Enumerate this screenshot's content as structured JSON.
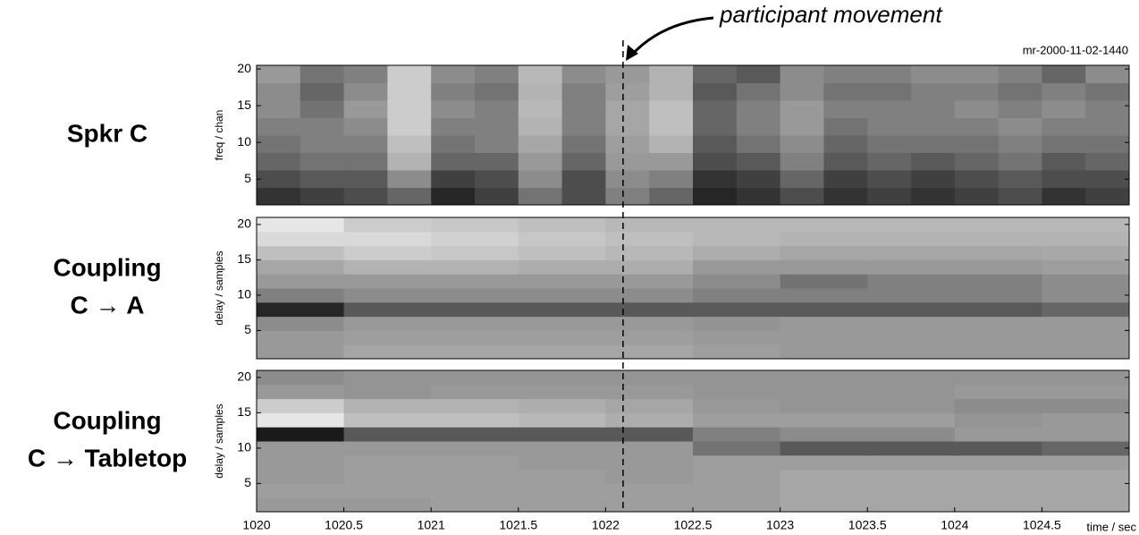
{
  "chart_data": [
    {
      "type": "heatmap",
      "title": [
        "Spkr C"
      ],
      "ylabel": "freq / chan",
      "run_id": "mr-2000-11-02-1440",
      "annotation": {
        "text": "participant movement",
        "x": 1022.1
      },
      "xlim": [
        1020,
        1025
      ],
      "ylim": [
        1.5,
        20.5
      ],
      "yticks": [
        5,
        10,
        15,
        20
      ],
      "z": [
        [
          0.2,
          0.25,
          0.3,
          0.4,
          0.15,
          0.25,
          0.45,
          0.3,
          0.5,
          0.4,
          0.15,
          0.2,
          0.3,
          0.2,
          0.25,
          0.2,
          0.25,
          0.3,
          0.2,
          0.25
        ],
        [
          0.3,
          0.35,
          0.35,
          0.55,
          0.25,
          0.3,
          0.55,
          0.3,
          0.55,
          0.5,
          0.2,
          0.25,
          0.4,
          0.25,
          0.3,
          0.25,
          0.3,
          0.35,
          0.3,
          0.3
        ],
        [
          0.4,
          0.45,
          0.45,
          0.7,
          0.4,
          0.4,
          0.6,
          0.4,
          0.6,
          0.6,
          0.3,
          0.35,
          0.5,
          0.35,
          0.4,
          0.35,
          0.4,
          0.45,
          0.35,
          0.4
        ],
        [
          0.45,
          0.5,
          0.5,
          0.75,
          0.45,
          0.5,
          0.65,
          0.45,
          0.62,
          0.7,
          0.35,
          0.45,
          0.55,
          0.4,
          0.45,
          0.45,
          0.45,
          0.5,
          0.45,
          0.45
        ],
        [
          0.5,
          0.5,
          0.55,
          0.8,
          0.5,
          0.5,
          0.7,
          0.5,
          0.65,
          0.75,
          0.4,
          0.5,
          0.6,
          0.45,
          0.5,
          0.5,
          0.5,
          0.55,
          0.5,
          0.5
        ],
        [
          0.55,
          0.45,
          0.6,
          0.8,
          0.55,
          0.5,
          0.72,
          0.5,
          0.65,
          0.75,
          0.4,
          0.5,
          0.6,
          0.5,
          0.5,
          0.5,
          0.55,
          0.5,
          0.55,
          0.5
        ],
        [
          0.55,
          0.4,
          0.55,
          0.8,
          0.5,
          0.45,
          0.7,
          0.5,
          0.62,
          0.7,
          0.35,
          0.45,
          0.55,
          0.45,
          0.45,
          0.5,
          0.5,
          0.45,
          0.5,
          0.45
        ],
        [
          0.6,
          0.45,
          0.5,
          0.8,
          0.55,
          0.5,
          0.72,
          0.55,
          0.6,
          0.7,
          0.4,
          0.35,
          0.55,
          0.5,
          0.5,
          0.55,
          0.55,
          0.5,
          0.4,
          0.55
        ]
      ]
    },
    {
      "type": "heatmap",
      "title": [
        "Coupling",
        "C → A"
      ],
      "ylabel": "delay / samples",
      "xlim": [
        1020,
        1025
      ],
      "ylim": [
        1,
        21
      ],
      "yticks": [
        5,
        10,
        15,
        20
      ],
      "z": [
        [
          0.6,
          0.65,
          0.65,
          0.65,
          0.65,
          0.62,
          0.6,
          0.6,
          0.6,
          0.6
        ],
        [
          0.6,
          0.62,
          0.62,
          0.62,
          0.62,
          0.6,
          0.6,
          0.6,
          0.6,
          0.6
        ],
        [
          0.55,
          0.6,
          0.6,
          0.6,
          0.6,
          0.58,
          0.6,
          0.6,
          0.6,
          0.6
        ],
        [
          0.15,
          0.35,
          0.35,
          0.35,
          0.35,
          0.35,
          0.35,
          0.35,
          0.35,
          0.4
        ],
        [
          0.5,
          0.55,
          0.55,
          0.55,
          0.55,
          0.5,
          0.5,
          0.5,
          0.5,
          0.55
        ],
        [
          0.6,
          0.6,
          0.6,
          0.6,
          0.6,
          0.55,
          0.45,
          0.5,
          0.5,
          0.55
        ],
        [
          0.65,
          0.7,
          0.7,
          0.68,
          0.68,
          0.6,
          0.6,
          0.6,
          0.6,
          0.62
        ],
        [
          0.75,
          0.8,
          0.78,
          0.75,
          0.72,
          0.68,
          0.65,
          0.65,
          0.65,
          0.66
        ],
        [
          0.85,
          0.85,
          0.82,
          0.78,
          0.75,
          0.72,
          0.7,
          0.7,
          0.7,
          0.7
        ],
        [
          0.9,
          0.8,
          0.78,
          0.75,
          0.72,
          0.72,
          0.72,
          0.72,
          0.72,
          0.72
        ]
      ]
    },
    {
      "type": "heatmap",
      "title": [
        "Coupling",
        "C → Tabletop"
      ],
      "ylabel": "delay / samples",
      "xlabel": "time / sec",
      "xlim": [
        1020,
        1025
      ],
      "ylim": [
        1,
        21
      ],
      "yticks": [
        5,
        10,
        15,
        20
      ],
      "xticks": [
        1020,
        1020.5,
        1021,
        1021.5,
        1022,
        1022.5,
        1023,
        1023.5,
        1024,
        1024.5
      ],
      "z": [
        [
          0.6,
          0.6,
          0.62,
          0.62,
          0.62,
          0.62,
          0.65,
          0.65,
          0.65,
          0.65
        ],
        [
          0.62,
          0.62,
          0.62,
          0.62,
          0.62,
          0.62,
          0.65,
          0.65,
          0.65,
          0.65
        ],
        [
          0.6,
          0.62,
          0.62,
          0.62,
          0.6,
          0.62,
          0.65,
          0.65,
          0.65,
          0.65
        ],
        [
          0.6,
          0.62,
          0.62,
          0.6,
          0.6,
          0.62,
          0.62,
          0.62,
          0.62,
          0.62
        ],
        [
          0.6,
          0.6,
          0.6,
          0.6,
          0.6,
          0.45,
          0.35,
          0.35,
          0.35,
          0.4
        ],
        [
          0.1,
          0.35,
          0.35,
          0.35,
          0.35,
          0.5,
          0.55,
          0.55,
          0.6,
          0.6
        ],
        [
          0.9,
          0.75,
          0.75,
          0.72,
          0.68,
          0.62,
          0.62,
          0.62,
          0.58,
          0.6
        ],
        [
          0.8,
          0.7,
          0.7,
          0.68,
          0.65,
          0.6,
          0.58,
          0.58,
          0.55,
          0.55
        ],
        [
          0.6,
          0.58,
          0.6,
          0.6,
          0.6,
          0.58,
          0.58,
          0.58,
          0.6,
          0.6
        ],
        [
          0.55,
          0.58,
          0.58,
          0.58,
          0.58,
          0.58,
          0.58,
          0.58,
          0.58,
          0.58
        ]
      ]
    }
  ]
}
